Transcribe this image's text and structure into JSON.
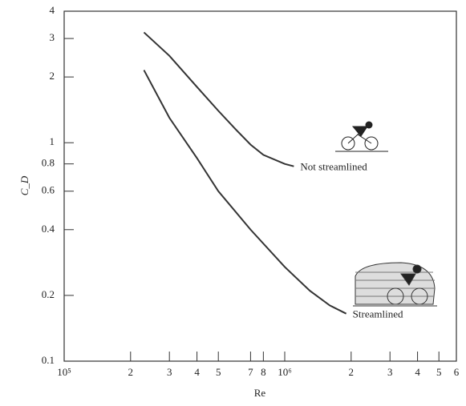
{
  "chart_data": {
    "type": "line",
    "x_label": "Re",
    "y_label": "C_D",
    "xlog": true,
    "ylog": true,
    "xlim": [
      100000,
      6000000
    ],
    "ylim": [
      0.1,
      4
    ],
    "xticks": [
      {
        "value": 100000,
        "label": "10⁵"
      },
      {
        "value": 200000,
        "label": "2"
      },
      {
        "value": 300000,
        "label": "3"
      },
      {
        "value": 400000,
        "label": "4"
      },
      {
        "value": 500000,
        "label": "5"
      },
      {
        "value": 700000,
        "label": "7"
      },
      {
        "value": 800000,
        "label": "8"
      },
      {
        "value": 1000000,
        "label": "10⁶"
      },
      {
        "value": 2000000,
        "label": "2"
      },
      {
        "value": 3000000,
        "label": "3"
      },
      {
        "value": 4000000,
        "label": "4"
      },
      {
        "value": 5000000,
        "label": "5"
      },
      {
        "value": 6000000,
        "label": "6"
      }
    ],
    "yticks": [
      0.1,
      0.2,
      0.4,
      0.6,
      0.8,
      1,
      2,
      3,
      4
    ],
    "series": [
      {
        "name": "Not streamlined",
        "color": "#333333",
        "x": [
          230000,
          300000,
          400000,
          500000,
          600000,
          700000,
          800000,
          1000000,
          1100000
        ],
        "values": [
          3.2,
          2.5,
          1.8,
          1.4,
          1.15,
          0.98,
          0.88,
          0.8,
          0.78
        ]
      },
      {
        "name": "Streamlined",
        "color": "#333333",
        "x": [
          230000,
          300000,
          400000,
          500000,
          700000,
          1000000,
          1300000,
          1600000,
          1900000
        ],
        "values": [
          2.15,
          1.3,
          0.85,
          0.6,
          0.4,
          0.27,
          0.21,
          0.18,
          0.165
        ]
      }
    ]
  }
}
